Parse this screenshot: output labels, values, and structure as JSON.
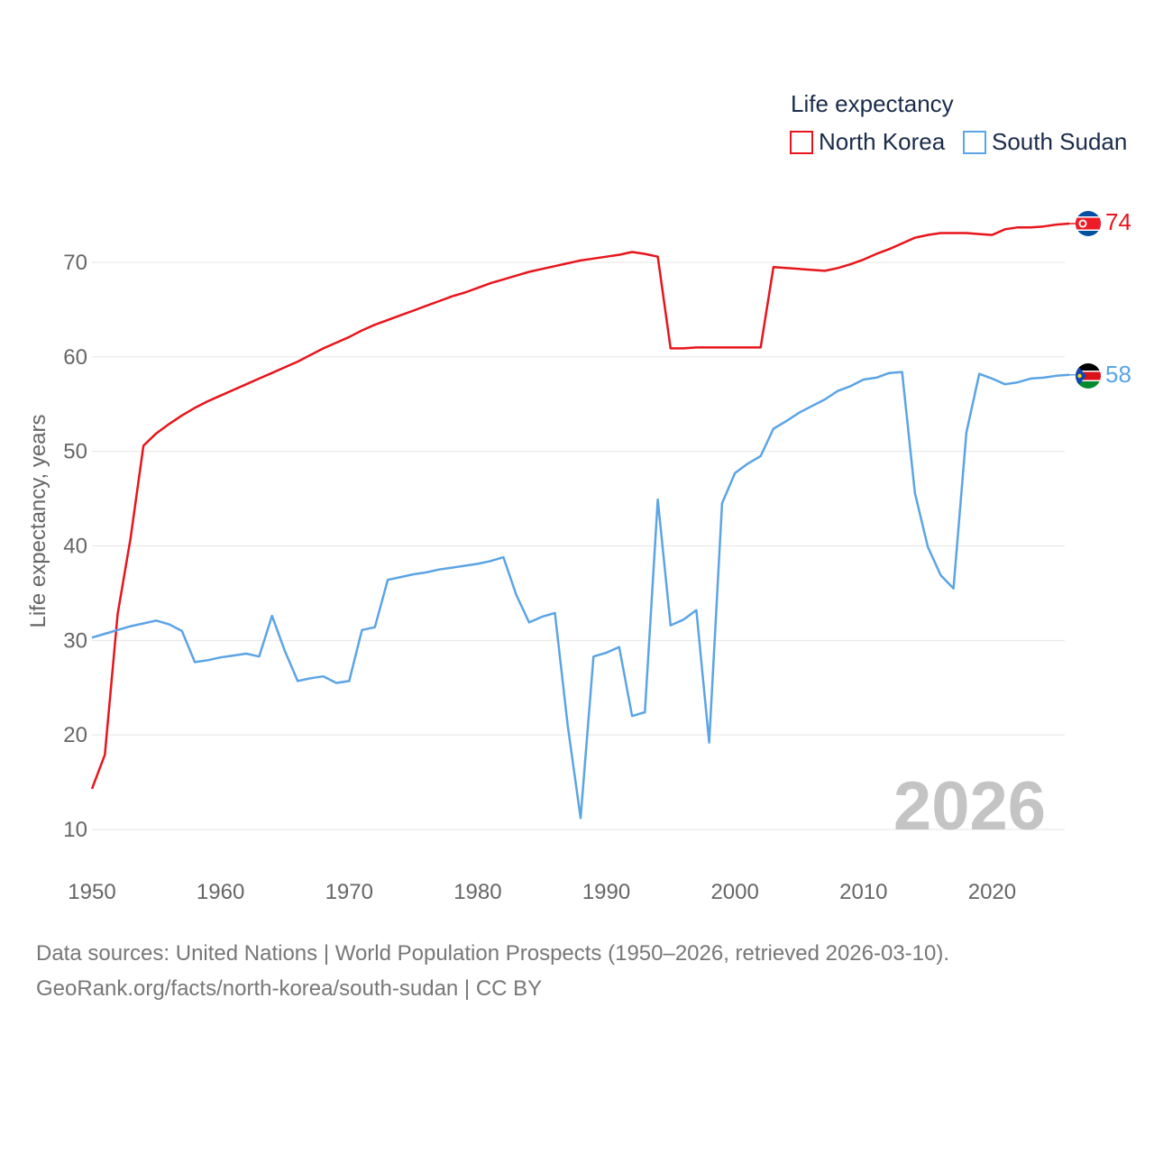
{
  "chart_data": {
    "type": "line",
    "legend_title": "Life expectancy",
    "ylabel": "Life expectancy, years",
    "xlabel": "",
    "xlim": [
      1950,
      2026
    ],
    "ylim": [
      6,
      80
    ],
    "xticks": [
      1950,
      1960,
      1970,
      1980,
      1990,
      2000,
      2010,
      2020
    ],
    "yticks": [
      10,
      20,
      30,
      40,
      50,
      60,
      70
    ],
    "current_year": "2026",
    "legend_position": "top-right",
    "grid": true,
    "series": [
      {
        "name": "North Korea",
        "color": "#e8141b",
        "end_label": "74",
        "flag": "north-korea-flag",
        "x": [
          1950,
          1951,
          1952,
          1953,
          1954,
          1955,
          1956,
          1957,
          1958,
          1959,
          1960,
          1961,
          1962,
          1963,
          1964,
          1965,
          1966,
          1967,
          1968,
          1969,
          1970,
          1971,
          1972,
          1973,
          1974,
          1975,
          1976,
          1977,
          1978,
          1979,
          1980,
          1981,
          1982,
          1983,
          1984,
          1985,
          1986,
          1987,
          1988,
          1989,
          1990,
          1991,
          1992,
          1993,
          1994,
          1995,
          1996,
          1997,
          1998,
          1999,
          2000,
          2001,
          2002,
          2003,
          2004,
          2005,
          2006,
          2007,
          2008,
          2009,
          2010,
          2011,
          2012,
          2013,
          2014,
          2015,
          2016,
          2017,
          2018,
          2019,
          2020,
          2021,
          2022,
          2023,
          2024,
          2025,
          2026
        ],
        "values": [
          14.3,
          17.9,
          32.8,
          40.8,
          50.6,
          51.9,
          52.9,
          53.8,
          54.6,
          55.3,
          55.9,
          56.5,
          57.1,
          57.7,
          58.3,
          58.9,
          59.5,
          60.2,
          60.9,
          61.5,
          62.1,
          62.8,
          63.4,
          63.9,
          64.4,
          64.9,
          65.4,
          65.9,
          66.4,
          66.8,
          67.3,
          67.8,
          68.2,
          68.6,
          69.0,
          69.3,
          69.6,
          69.9,
          70.2,
          70.4,
          70.6,
          70.8,
          71.1,
          70.9,
          70.6,
          60.9,
          60.9,
          61.0,
          61.0,
          61.0,
          61.0,
          61.0,
          61.0,
          69.5,
          69.4,
          69.3,
          69.2,
          69.1,
          69.4,
          69.8,
          70.3,
          70.9,
          71.4,
          72.0,
          72.6,
          72.9,
          73.1,
          73.1,
          73.1,
          73.0,
          72.9,
          73.5,
          73.7,
          73.7,
          73.8,
          74.0,
          74.1
        ]
      },
      {
        "name": "South Sudan",
        "color": "#5ba4e5",
        "end_label": "58",
        "flag": "south-sudan-flag",
        "x": [
          1950,
          1951,
          1952,
          1953,
          1954,
          1955,
          1956,
          1957,
          1958,
          1959,
          1960,
          1961,
          1962,
          1963,
          1964,
          1965,
          1966,
          1967,
          1968,
          1969,
          1970,
          1971,
          1972,
          1973,
          1974,
          1975,
          1976,
          1977,
          1978,
          1979,
          1980,
          1981,
          1982,
          1983,
          1984,
          1985,
          1986,
          1987,
          1988,
          1989,
          1990,
          1991,
          1992,
          1993,
          1994,
          1995,
          1996,
          1997,
          1998,
          1999,
          2000,
          2001,
          2002,
          2003,
          2004,
          2005,
          2006,
          2007,
          2008,
          2009,
          2010,
          2011,
          2012,
          2013,
          2014,
          2015,
          2016,
          2017,
          2018,
          2019,
          2020,
          2021,
          2022,
          2023,
          2024,
          2025,
          2026
        ],
        "values": [
          30.3,
          30.7,
          31.1,
          31.5,
          31.8,
          32.1,
          31.7,
          31.0,
          27.7,
          27.9,
          28.2,
          28.4,
          28.6,
          28.3,
          32.6,
          28.9,
          25.7,
          26.0,
          26.2,
          25.5,
          25.7,
          31.1,
          31.4,
          36.4,
          36.7,
          37.0,
          37.2,
          37.5,
          37.7,
          37.9,
          38.1,
          38.4,
          38.8,
          34.8,
          31.9,
          32.5,
          32.9,
          21.0,
          11.2,
          28.3,
          28.7,
          29.3,
          22.0,
          22.4,
          44.9,
          31.6,
          32.2,
          33.2,
          19.2,
          44.5,
          47.7,
          48.7,
          49.5,
          52.4,
          53.2,
          54.1,
          54.8,
          55.5,
          56.4,
          56.9,
          57.6,
          57.8,
          58.3,
          58.4,
          45.6,
          39.9,
          36.9,
          35.5,
          52.0,
          58.2,
          57.7,
          57.1,
          57.3,
          57.7,
          57.8,
          58.0,
          58.1
        ]
      }
    ]
  },
  "footer": {
    "line1": "Data sources: United Nations | World Population Prospects (1950–2026, retrieved 2026-03-10).",
    "line2": "GeoRank.org/facts/north-korea/south-sudan | CC BY"
  }
}
